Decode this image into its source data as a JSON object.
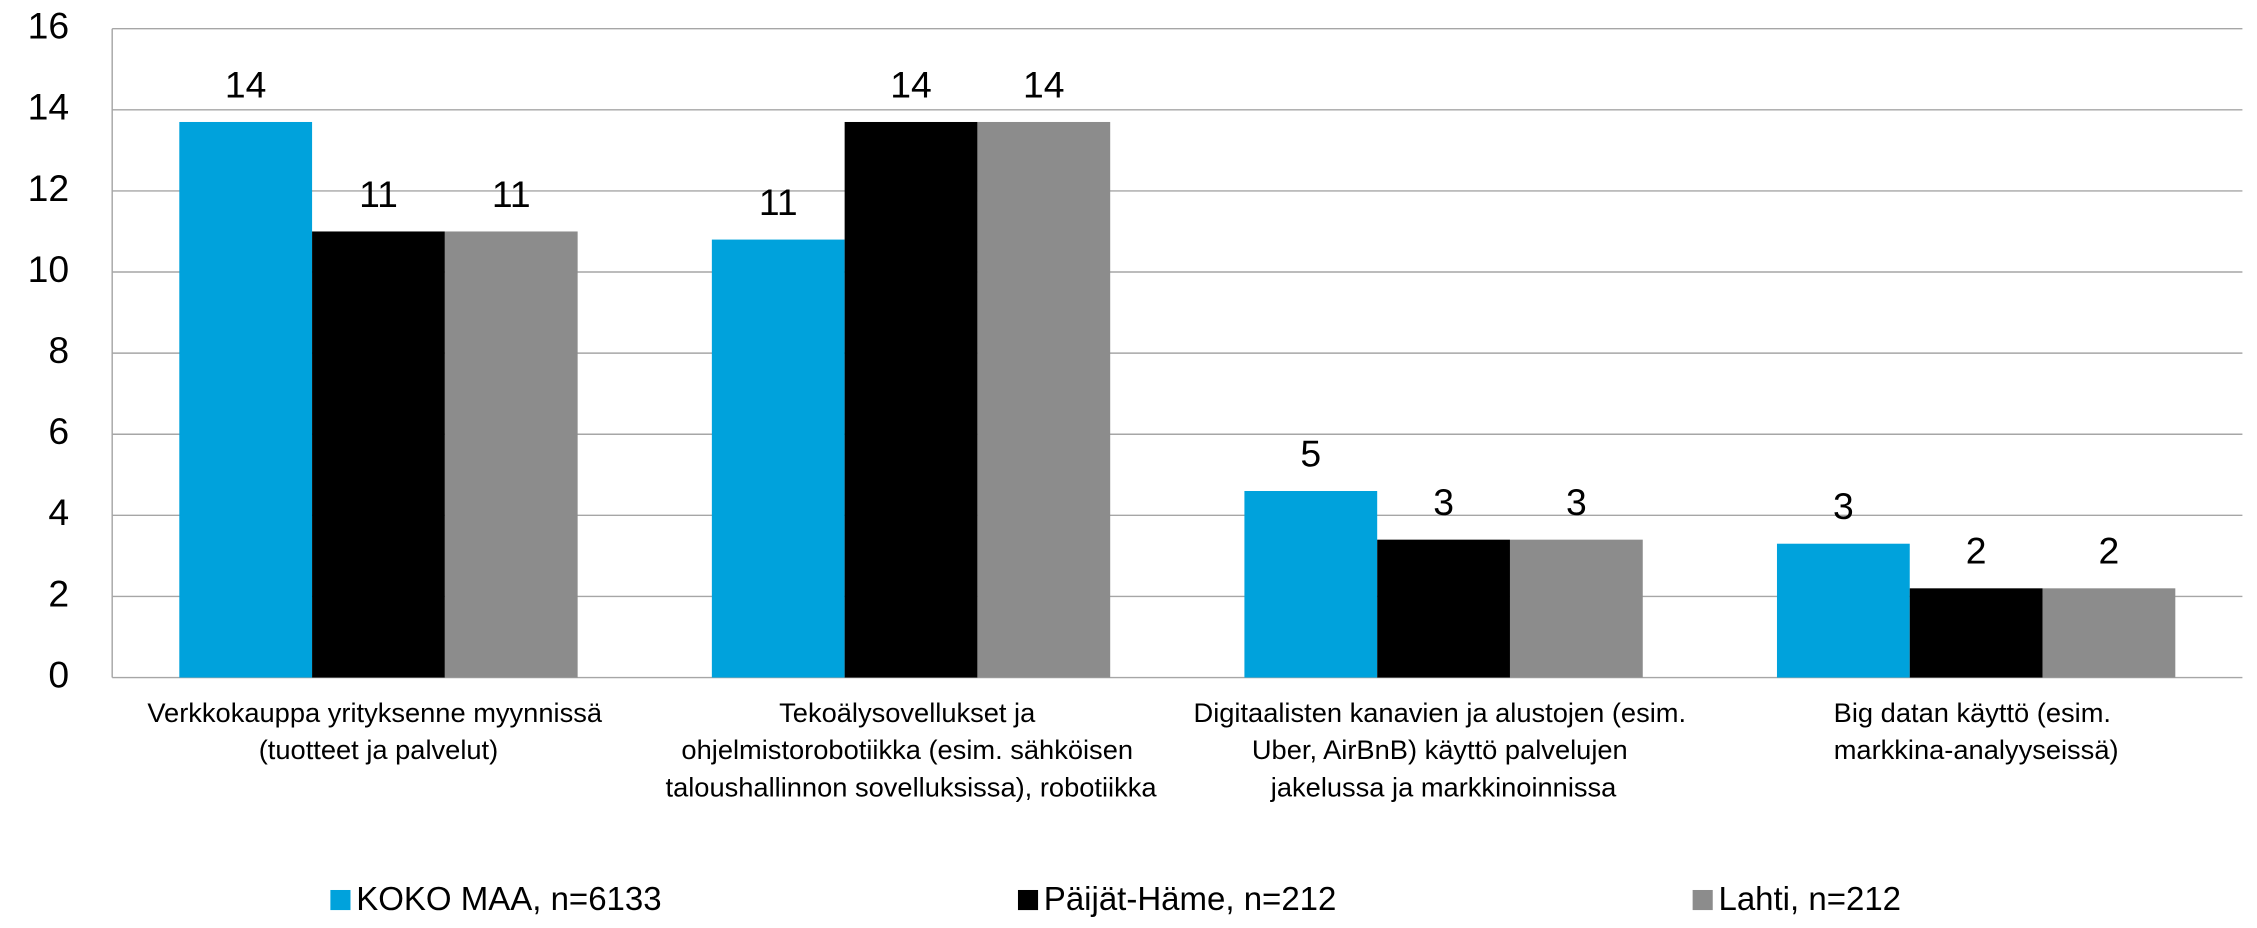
{
  "chart_data": {
    "type": "bar",
    "categories": [
      "Verkkokauppa yrityksenne myynnissä (tuotteet ja palvelut)",
      "Tekoälysovellukset ja ohjelmistorobotiikka (esim. sähköisen taloushallinnon sovelluksissa), robotiikka",
      "Digitaalisten kanavien ja alustojen (esim. Uber, AirBnB) käyttö palvelujen jakelussa ja markkinoinnissa",
      "Big datan käyttö (esim. markkina-analyyseissä)"
    ],
    "series": [
      {
        "name": "KOKO MAA, n=6133",
        "color": "#00a2dc",
        "values": [
          13.7,
          10.8,
          4.6,
          3.3
        ],
        "value_labels": [
          "14",
          "11",
          "5",
          "3"
        ]
      },
      {
        "name": "Päijät-Häme, n=212",
        "color": "#000000",
        "values": [
          11.0,
          13.7,
          3.4,
          2.2
        ],
        "value_labels": [
          "11",
          "14",
          "3",
          "2"
        ]
      },
      {
        "name": "Lahti, n=212",
        "color": "#8c8c8c",
        "values": [
          11.0,
          13.7,
          3.4,
          2.2
        ],
        "value_labels": [
          "11",
          "14",
          "3",
          "2"
        ]
      }
    ],
    "ylim": [
      0,
      16
    ],
    "yticks": [
      0,
      2,
      4,
      6,
      8,
      10,
      12,
      14,
      16
    ],
    "grid": true,
    "legend": "bottom"
  }
}
